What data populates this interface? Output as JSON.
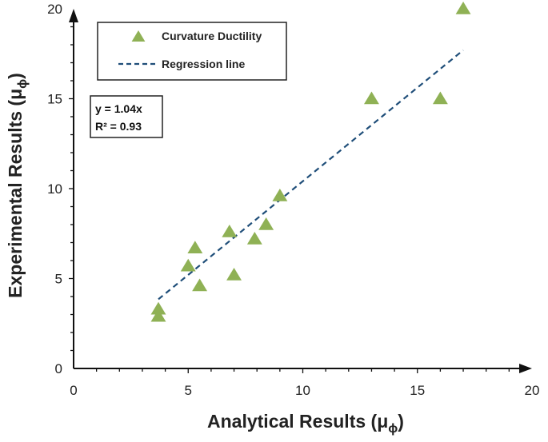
{
  "chart_data": {
    "type": "scatter",
    "title": "",
    "xlabel": "Analytical Results",
    "xlabel_symbol": "μ",
    "xlabel_subscript": "ϕ",
    "ylabel": "Experimental Results",
    "ylabel_symbol": "μ",
    "ylabel_subscript": "ϕ",
    "xlim": [
      0,
      20
    ],
    "ylim": [
      0,
      20
    ],
    "x_ticks": [
      0,
      5,
      10,
      15,
      20
    ],
    "y_ticks": [
      0,
      5,
      10,
      15,
      20
    ],
    "grid": false,
    "legend_position": "top-left",
    "series": [
      {
        "name": "Curvature Ductility",
        "marker": "triangle",
        "color": "#8fb155",
        "points": [
          {
            "x": 3.7,
            "y": 2.9
          },
          {
            "x": 3.7,
            "y": 3.3
          },
          {
            "x": 5.0,
            "y": 5.7
          },
          {
            "x": 5.3,
            "y": 6.7
          },
          {
            "x": 5.5,
            "y": 4.6
          },
          {
            "x": 6.8,
            "y": 7.6
          },
          {
            "x": 7.0,
            "y": 5.2
          },
          {
            "x": 7.9,
            "y": 7.2
          },
          {
            "x": 8.4,
            "y": 8.0
          },
          {
            "x": 9.0,
            "y": 9.6
          },
          {
            "x": 13.0,
            "y": 15.0
          },
          {
            "x": 16.0,
            "y": 15.0
          },
          {
            "x": 17.0,
            "y": 20.0
          }
        ]
      },
      {
        "name": "Regression line",
        "style": "dashed",
        "color": "#1f4e79",
        "x": [
          3.7,
          17.0
        ],
        "y": [
          3.85,
          17.7
        ]
      }
    ],
    "annotations": {
      "equation": "y = 1.04x",
      "r_squared": "R² = 0.93"
    }
  }
}
